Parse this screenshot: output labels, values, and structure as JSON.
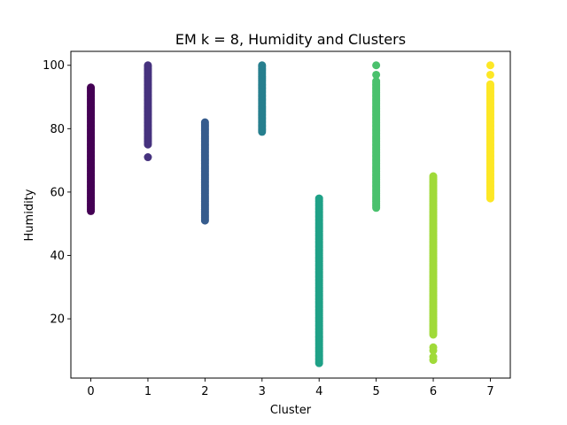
{
  "chart_data": {
    "type": "scatter",
    "title": "EM k = 8, Humidity and Clusters",
    "xlabel": "Cluster",
    "ylabel": "Humidity",
    "xlim": [
      -0.35,
      7.35
    ],
    "ylim": [
      1.3,
      104.4
    ],
    "xticks": [
      0,
      1,
      2,
      3,
      4,
      5,
      6,
      7
    ],
    "yticks": [
      20,
      40,
      60,
      80,
      100
    ],
    "grid": false,
    "colormap": "viridis",
    "clusters": [
      {
        "x": 0,
        "color": "#440154",
        "ymin": 54,
        "ymax": 93,
        "outliers": []
      },
      {
        "x": 1,
        "color": "#46327e",
        "ymin": 75,
        "ymax": 100,
        "outliers": [
          71
        ]
      },
      {
        "x": 2,
        "color": "#365c8d",
        "ymin": 51,
        "ymax": 82,
        "outliers": []
      },
      {
        "x": 3,
        "color": "#277f8e",
        "ymin": 79,
        "ymax": 100,
        "outliers": []
      },
      {
        "x": 4,
        "color": "#1fa187",
        "ymin": 6,
        "ymax": 58,
        "outliers": []
      },
      {
        "x": 5,
        "color": "#4ac16d",
        "ymin": 55,
        "ymax": 95,
        "outliers": [
          97,
          100
        ]
      },
      {
        "x": 6,
        "color": "#a0da39",
        "ymin": 15,
        "ymax": 65,
        "outliers": [
          7,
          8,
          10,
          11
        ]
      },
      {
        "x": 7,
        "color": "#fde725",
        "ymin": 58,
        "ymax": 94,
        "outliers": [
          97,
          100
        ]
      }
    ]
  }
}
